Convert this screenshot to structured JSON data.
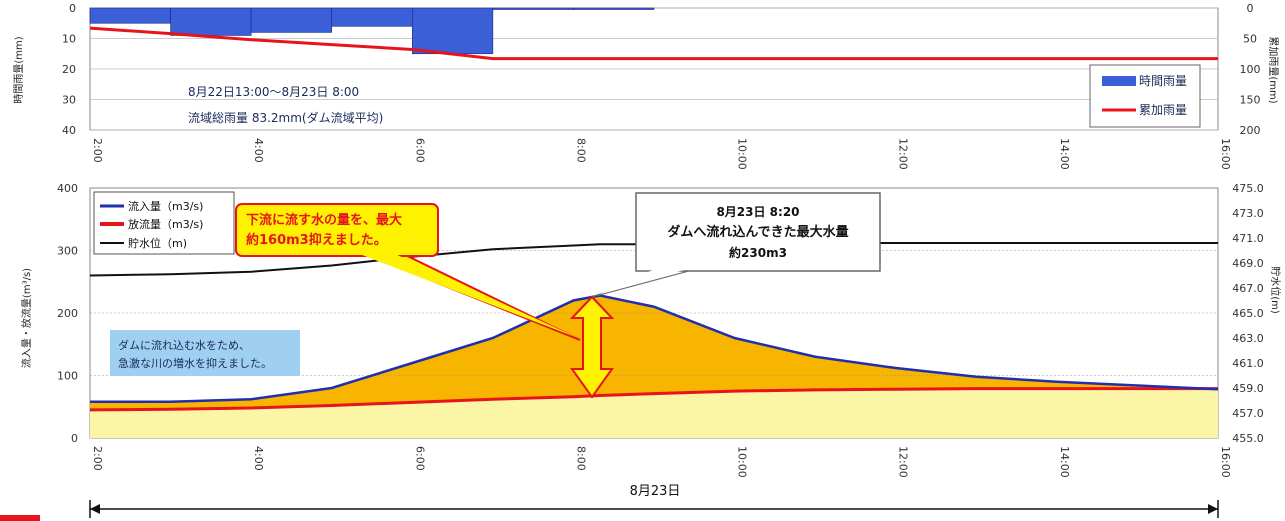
{
  "chart_data": [
    {
      "type": "bar",
      "title": "",
      "ylabel_left": "時間雨量(mm)",
      "ylabel_right": "累加雨量(mm)",
      "ylim_left": [
        40,
        0
      ],
      "ylim_right": [
        200,
        0
      ],
      "yticks_left": [
        "0",
        "10",
        "20",
        "30",
        "40"
      ],
      "yticks_right": [
        "0",
        "50",
        "100",
        "150",
        "200"
      ],
      "x_ticks": [
        "2:00",
        "4:00",
        "6:00",
        "8:00",
        "10:00",
        "12:00",
        "14:00",
        "16:00"
      ],
      "series": [
        {
          "name": "時間雨量",
          "kind": "bar",
          "color": "#3b5fd6",
          "x": [
            "2:30",
            "3:30",
            "4:30",
            "5:30",
            "6:30",
            "7:30",
            "8:30"
          ],
          "values": [
            5,
            9,
            8,
            6,
            15,
            0.5,
            0.5
          ]
        },
        {
          "name": "累加雨量",
          "kind": "line",
          "color": "#e8141b",
          "x": [
            "2:00",
            "3:00",
            "4:00",
            "5:00",
            "6:00",
            "7:00",
            "8:00",
            "9:00",
            "10:00",
            "12:00",
            "14:00",
            "16:00"
          ],
          "values": [
            33,
            42,
            52,
            60,
            68,
            83,
            83,
            83,
            83,
            83,
            83,
            83
          ]
        }
      ],
      "annotation_period": "8月22日13:00～8月23日 8:00",
      "annotation_total": "流域総雨量 83.2mm(ダム流域平均)",
      "legend_position": "right"
    },
    {
      "type": "area",
      "title": "",
      "xlabel": "8月23日",
      "ylabel_left": "流入量・放流量(m³/s)",
      "ylabel_right": "貯水位(m)",
      "ylim_left": [
        0,
        400
      ],
      "ylim_right": [
        455.0,
        475.0
      ],
      "yticks_left": [
        "0",
        "100",
        "200",
        "300",
        "400"
      ],
      "yticks_right": [
        "455.0",
        "457.0",
        "459.0",
        "461.0",
        "463.0",
        "465.0",
        "467.0",
        "469.0",
        "471.0",
        "473.0",
        "475.0"
      ],
      "x_ticks": [
        "2:00",
        "4:00",
        "6:00",
        "8:00",
        "10:00",
        "12:00",
        "14:00",
        "16:00"
      ],
      "x_hours": [
        2,
        3,
        4,
        5,
        6,
        7,
        8,
        8.33,
        9,
        10,
        11,
        12,
        13,
        14,
        15,
        16
      ],
      "series": [
        {
          "name": "流入量（m3/s)",
          "color": "#1f2fb0",
          "values": [
            58,
            58,
            62,
            80,
            120,
            160,
            220,
            228,
            210,
            160,
            130,
            112,
            98,
            90,
            84,
            78
          ]
        },
        {
          "name": "放流量（m3/s)",
          "color": "#e8141b",
          "values": [
            45,
            46,
            48,
            52,
            57,
            62,
            66,
            68,
            71,
            75,
            77,
            78,
            79,
            79,
            79,
            79
          ]
        },
        {
          "name": "貯水位（m)",
          "color": "#111111",
          "axis": "right",
          "values": [
            468.0,
            468.1,
            468.3,
            468.8,
            469.5,
            470.1,
            470.4,
            470.5,
            470.5,
            470.5,
            470.6,
            470.6,
            470.6,
            470.6,
            470.6,
            470.6
          ]
        }
      ],
      "legend_position": "top-left"
    }
  ],
  "texts": {
    "callout_reduce_line1": "下流に流す水の量を、最大",
    "callout_reduce_line2": "約160m3抑えました。",
    "callout_peak_line1": "8月23日 8:20",
    "callout_peak_line2": "ダムへ流れ込んできた最大水量",
    "callout_peak_line3": "約230m3",
    "note_line1": "ダムに流れ込む水をため、",
    "note_line2": "急激な川の増水を抑えました。"
  },
  "colors": {
    "inflow": "#1f2fb0",
    "outflow": "#e8141b",
    "storage_fill": "#f7b500",
    "base_fill": "#fbf6a6",
    "bar": "#3b5fd6",
    "note_bg": "#9fd0f2",
    "callout_bg": "#fff200"
  }
}
